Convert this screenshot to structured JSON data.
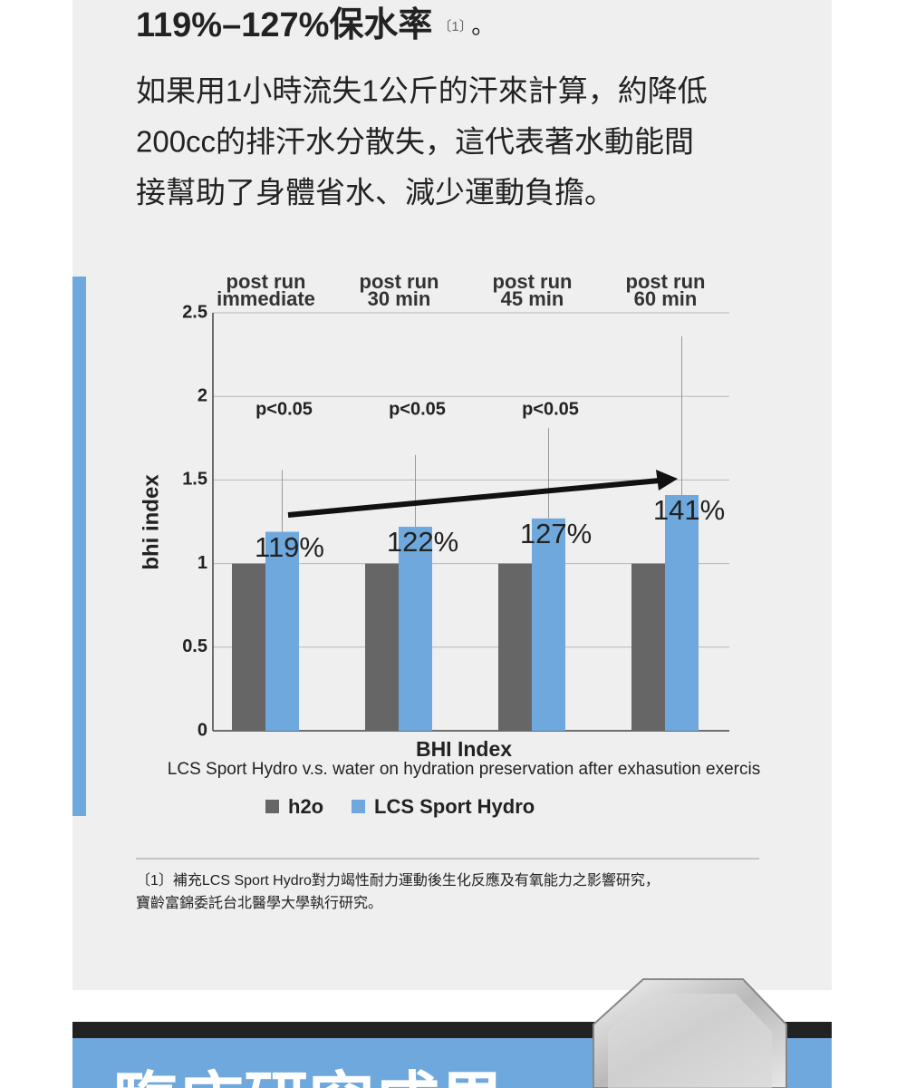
{
  "header": {
    "title": "119%–127%保水率",
    "ref": "〔1〕",
    "period": "。"
  },
  "paragraph": [
    "如果用1小時流失1公斤的汗來計算，約降低",
    "200cc的排汗水分散失，這代表著水動能間",
    "接幫助了身體省水、減少運動負擔。"
  ],
  "chart_data": {
    "type": "bar",
    "categories": [
      [
        "post run",
        "immediate"
      ],
      [
        "post run",
        "30 min"
      ],
      [
        "post run",
        "45 min"
      ],
      [
        "post run",
        "60 min"
      ]
    ],
    "series": [
      {
        "name": "h2o",
        "color": "#666666",
        "values": [
          1,
          1,
          1,
          1
        ]
      },
      {
        "name": "LCS Sport Hydro",
        "color": "#6fa8dc",
        "values": [
          1.19,
          1.22,
          1.27,
          1.41
        ],
        "value_labels": [
          "119%",
          "122%",
          "127%",
          "141%"
        ],
        "errors": [
          0.37,
          0.43,
          0.54,
          0.95
        ]
      }
    ],
    "significance": [
      "p<0.05",
      "p<0.05",
      "p<0.05",
      null
    ],
    "ylabel": "bhi index",
    "xlabel": "BHI Index",
    "subtitle": "LCS Sport Hydro v.s. water on hydration preservation after exhasution exercis",
    "ylim": [
      0,
      2.5
    ],
    "yticks": [
      0,
      0.5,
      1,
      1.5,
      2,
      2.5
    ],
    "grid": true
  },
  "footnote": [
    "〔1〕補充LCS Sport Hydro對力竭性耐力運動後生化反應及有氧能力之影響研究，",
    "寶齡富錦委託台北醫學大學執行研究。"
  ],
  "banner": {
    "title": "臨床研究成果"
  }
}
